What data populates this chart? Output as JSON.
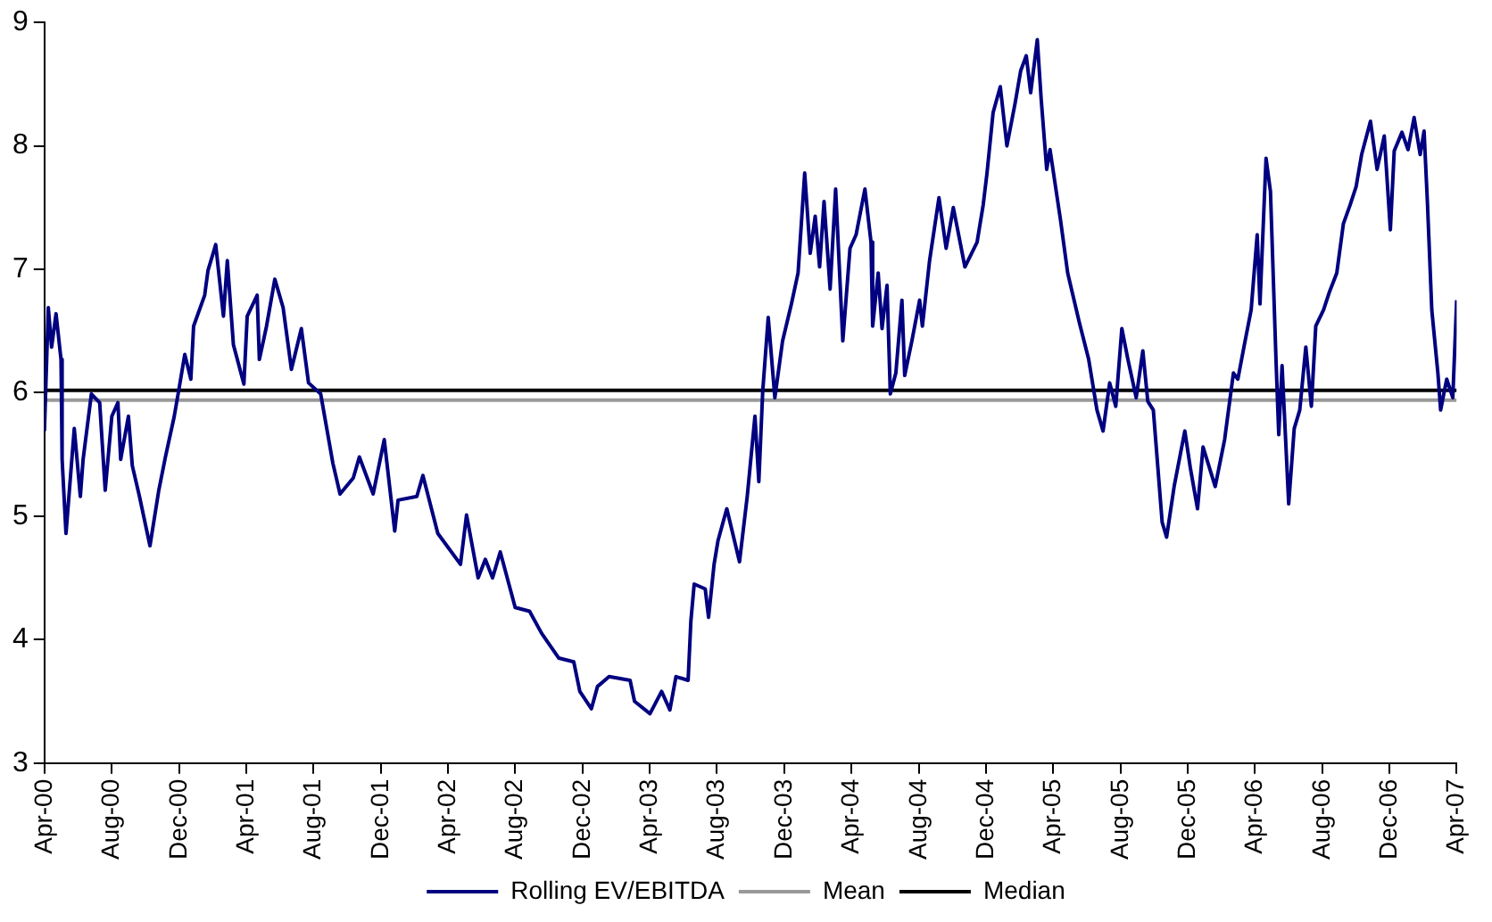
{
  "chart_data": {
    "type": "line",
    "legend": "bottom",
    "xlim": [
      "2000-04",
      "2007-04"
    ],
    "ylim": [
      3,
      9
    ],
    "yticks": [
      3,
      4,
      5,
      6,
      7,
      8,
      9
    ],
    "xticks": [
      {
        "value": "2000-04",
        "label": "Apr-00"
      },
      {
        "value": "2000-08",
        "label": "Aug-00"
      },
      {
        "value": "2000-12",
        "label": "Dec-00"
      },
      {
        "value": "2001-04",
        "label": "Apr-01"
      },
      {
        "value": "2001-08",
        "label": "Aug-01"
      },
      {
        "value": "2001-12",
        "label": "Dec-01"
      },
      {
        "value": "2002-04",
        "label": "Apr-02"
      },
      {
        "value": "2002-08",
        "label": "Aug-02"
      },
      {
        "value": "2002-12",
        "label": "Dec-02"
      },
      {
        "value": "2003-04",
        "label": "Apr-03"
      },
      {
        "value": "2003-08",
        "label": "Aug-03"
      },
      {
        "value": "2003-12",
        "label": "Dec-03"
      },
      {
        "value": "2004-04",
        "label": "Apr-04"
      },
      {
        "value": "2004-08",
        "label": "Aug-04"
      },
      {
        "value": "2004-12",
        "label": "Dec-04"
      },
      {
        "value": "2005-04",
        "label": "Apr-05"
      },
      {
        "value": "2005-08",
        "label": "Aug-05"
      },
      {
        "value": "2005-12",
        "label": "Dec-05"
      },
      {
        "value": "2006-04",
        "label": "Apr-06"
      },
      {
        "value": "2006-08",
        "label": "Aug-06"
      },
      {
        "value": "2006-12",
        "label": "Dec-06"
      },
      {
        "value": "2007-04",
        "label": "Apr-07"
      }
    ],
    "series": [
      {
        "name": "Rolling EV/EBITDA",
        "color": "#000080",
        "x": [
          "2000-04-01",
          "2000-04-08",
          "2000-04-14",
          "2000-04-22",
          "2000-05-01",
          "2000-05-03",
          "2000-05-10",
          "2000-05-25",
          "2000-06-05",
          "2000-06-10",
          "2000-06-25",
          "2000-07-10",
          "2000-07-20",
          "2000-08-01",
          "2000-08-12",
          "2000-08-17",
          "2000-08-31",
          "2000-09-07",
          "2000-09-20",
          "2000-10-09",
          "2000-10-25",
          "2000-11-06",
          "2000-11-22",
          "2000-12-02",
          "2000-12-11",
          "2000-12-22",
          "2000-12-27",
          "2001-01-16",
          "2001-01-22",
          "2001-02-05",
          "2001-02-19",
          "2001-02-26",
          "2001-03-09",
          "2001-03-28",
          "2001-04-03",
          "2001-04-21",
          "2001-04-25",
          "2001-05-08",
          "2001-05-23",
          "2001-06-07",
          "2001-06-22",
          "2001-07-10",
          "2001-07-23",
          "2001-08-14",
          "2001-09-05",
          "2001-09-18",
          "2001-10-12",
          "2001-10-23",
          "2001-11-17",
          "2001-12-07",
          "2001-12-26",
          "2002-01-01",
          "2002-02-04",
          "2002-02-15",
          "2002-03-14",
          "2002-04-24",
          "2002-05-05",
          "2002-05-26",
          "2002-06-08",
          "2002-06-21",
          "2002-07-05",
          "2002-08-01",
          "2002-08-27",
          "2002-09-18",
          "2002-10-19",
          "2002-11-15",
          "2002-11-26",
          "2002-12-17",
          "2002-12-28",
          "2003-01-18",
          "2003-02-25",
          "2003-03-05",
          "2003-04-02",
          "2003-04-23",
          "2003-05-08",
          "2003-05-19",
          "2003-06-10",
          "2003-06-15",
          "2003-06-21",
          "2003-07-11",
          "2003-07-17",
          "2003-07-27",
          "2003-08-03",
          "2003-08-19",
          "2003-09-11",
          "2003-09-25",
          "2003-10-09",
          "2003-10-16",
          "2003-10-23",
          "2003-11-02",
          "2003-11-14",
          "2003-11-28",
          "2003-12-14",
          "2003-12-26",
          "2004-01-07",
          "2004-01-17",
          "2004-01-26",
          "2004-02-03",
          "2004-02-11",
          "2004-02-22",
          "2004-03-03",
          "2004-03-16",
          "2004-03-29",
          "2004-04-09",
          "2004-04-25",
          "2004-05-06",
          "2004-05-09",
          "2004-05-19",
          "2004-05-26",
          "2004-06-04",
          "2004-06-10",
          "2004-06-20",
          "2004-07-01",
          "2004-07-06",
          "2004-07-19",
          "2004-08-02",
          "2004-08-07",
          "2004-08-20",
          "2004-09-06",
          "2004-09-19",
          "2004-10-02",
          "2004-10-23",
          "2004-11-14",
          "2004-11-25",
          "2004-12-02",
          "2004-12-13",
          "2004-12-26",
          "2005-01-07",
          "2005-01-22",
          "2005-02-01",
          "2005-02-11",
          "2005-02-19",
          "2005-03-03",
          "2005-03-10",
          "2005-03-20",
          "2005-03-26",
          "2005-04-14",
          "2005-04-27",
          "2005-05-18",
          "2005-06-04",
          "2005-06-19",
          "2005-06-30",
          "2005-07-12",
          "2005-07-23",
          "2005-08-03",
          "2005-08-14",
          "2005-08-29",
          "2005-09-10",
          "2005-09-19",
          "2005-09-29",
          "2005-10-15",
          "2005-10-23",
          "2005-11-06",
          "2005-11-25",
          "2005-12-05",
          "2005-12-18",
          "2005-12-28",
          "2006-01-19",
          "2006-02-05",
          "2006-02-21",
          "2006-03-01",
          "2006-03-12",
          "2006-03-25",
          "2006-04-05",
          "2006-04-10",
          "2006-04-21",
          "2006-04-29",
          "2006-05-09",
          "2006-05-14",
          "2006-05-20",
          "2006-06-01",
          "2006-06-11",
          "2006-06-21",
          "2006-07-02",
          "2006-07-12",
          "2006-07-20",
          "2006-08-03",
          "2006-08-14",
          "2006-08-27",
          "2006-09-08",
          "2006-09-20",
          "2006-10-01",
          "2006-10-11",
          "2006-10-27",
          "2006-11-08",
          "2006-11-21",
          "2006-12-02",
          "2006-12-09",
          "2006-12-23",
          "2007-01-03",
          "2007-01-14",
          "2007-01-25",
          "2007-02-01",
          "2007-02-07",
          "2007-02-15",
          "2007-02-26",
          "2007-03-03",
          "2007-03-14",
          "2007-03-25",
          "2007-04-01"
        ],
        "values": [
          5.69,
          6.69,
          6.37,
          6.64,
          6.27,
          5.46,
          4.86,
          5.71,
          5.16,
          5.46,
          5.99,
          5.92,
          5.21,
          5.81,
          5.92,
          5.46,
          5.81,
          5.41,
          5.16,
          4.76,
          5.21,
          5.48,
          5.81,
          6.07,
          6.31,
          6.11,
          6.54,
          6.79,
          6.99,
          7.2,
          6.62,
          7.07,
          6.39,
          6.07,
          6.62,
          6.79,
          6.27,
          6.54,
          6.92,
          6.69,
          6.19,
          6.52,
          6.08,
          5.99,
          5.43,
          5.18,
          5.31,
          5.48,
          5.18,
          5.62,
          4.88,
          5.13,
          5.16,
          5.33,
          4.86,
          4.61,
          5.01,
          4.5,
          4.65,
          4.5,
          4.71,
          4.26,
          4.23,
          4.05,
          3.85,
          3.82,
          3.58,
          3.44,
          3.62,
          3.7,
          3.67,
          3.5,
          3.4,
          3.58,
          3.43,
          3.7,
          3.67,
          4.15,
          4.45,
          4.41,
          4.18,
          4.61,
          4.8,
          5.06,
          4.63,
          5.16,
          5.81,
          5.28,
          6.01,
          6.61,
          5.96,
          6.42,
          6.72,
          6.97,
          7.78,
          7.13,
          7.43,
          7.02,
          7.55,
          6.84,
          7.65,
          6.42,
          7.17,
          7.28,
          7.65,
          7.22,
          6.54,
          6.97,
          6.52,
          6.87,
          5.99,
          6.16,
          6.75,
          6.14,
          6.42,
          6.75,
          6.54,
          7.07,
          7.58,
          7.17,
          7.5,
          7.02,
          7.22,
          7.52,
          7.78,
          8.27,
          8.48,
          8.0,
          8.35,
          8.61,
          8.73,
          8.43,
          8.86,
          8.38,
          7.81,
          7.97,
          7.4,
          6.97,
          6.57,
          6.27,
          5.86,
          5.69,
          6.08,
          5.89,
          6.52,
          6.27,
          5.96,
          6.34,
          5.93,
          5.86,
          4.95,
          4.83,
          5.25,
          5.69,
          5.39,
          5.06,
          5.56,
          5.24,
          5.62,
          6.16,
          6.11,
          6.37,
          6.67,
          7.28,
          6.72,
          7.9,
          7.63,
          6.27,
          5.66,
          6.22,
          5.1,
          5.71,
          5.86,
          6.37,
          5.89,
          6.54,
          6.67,
          6.82,
          6.97,
          7.37,
          7.52,
          7.67,
          7.93,
          8.2,
          7.81,
          8.08,
          7.32,
          7.96,
          8.11,
          7.97,
          8.23,
          7.93,
          8.12,
          7.55,
          6.67,
          6.16,
          5.86,
          6.11,
          5.96,
          6.75
        ]
      },
      {
        "name": "Mean",
        "color": "#999999",
        "x": [
          "2000-04-01",
          "2007-04-01"
        ],
        "values": [
          5.94,
          5.94
        ]
      },
      {
        "name": "Median",
        "color": "#000000",
        "x": [
          "2000-04-01",
          "2007-04-01"
        ],
        "values": [
          6.02,
          6.02
        ]
      }
    ]
  }
}
